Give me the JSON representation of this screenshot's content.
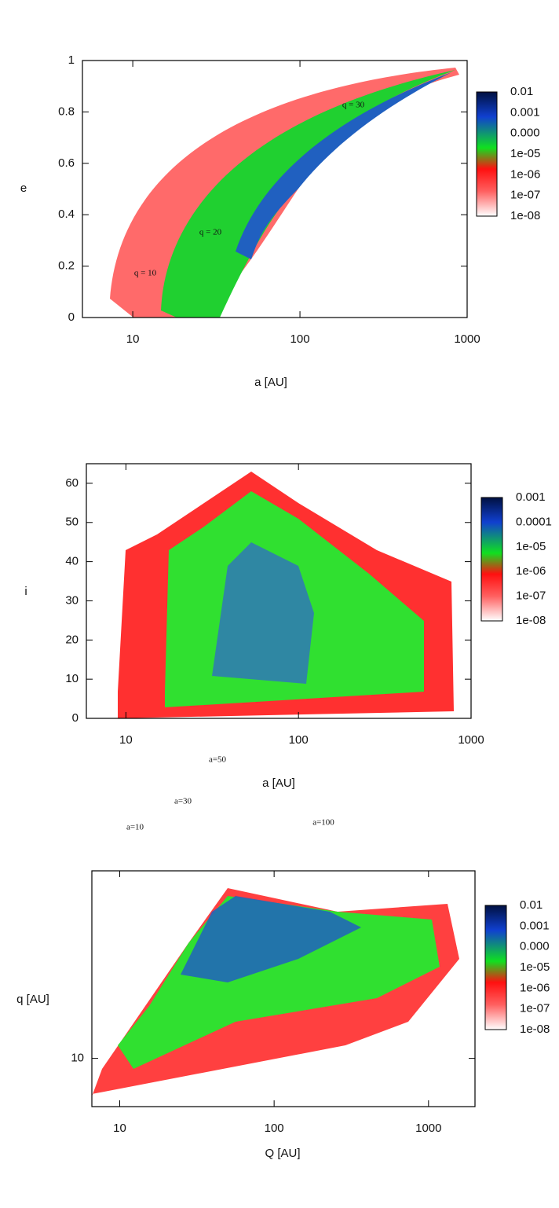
{
  "chart_data": [
    {
      "type": "heatmap",
      "xlabel": "a [AU]",
      "ylabel": "e",
      "log_x": true,
      "log_y": false,
      "xlim": [
        5,
        1000
      ],
      "ylim": [
        0,
        1
      ],
      "xticks": [
        10,
        100,
        1000
      ],
      "yticks": [
        0,
        0.2,
        0.4,
        0.6,
        0.8,
        1
      ],
      "colorbar_labels": [
        "0.01",
        "0.001",
        "0.000",
        "1e-05",
        "1e-06",
        "1e-07",
        "1e-08"
      ],
      "annotations": [
        "q = 10",
        "q = 20",
        "q = 30"
      ]
    },
    {
      "type": "heatmap",
      "xlabel": "a [AU]",
      "ylabel": "i",
      "log_x": true,
      "log_y": false,
      "xlim": [
        5.9,
        1000
      ],
      "ylim": [
        0,
        65
      ],
      "xticks": [
        10,
        100,
        1000
      ],
      "yticks": [
        0,
        10,
        20,
        30,
        40,
        50,
        60
      ],
      "colorbar_labels": [
        "0.001",
        "0.0001",
        "1e-05",
        "1e-06",
        "1e-07",
        "1e-08"
      ],
      "annotations": []
    },
    {
      "type": "heatmap",
      "xlabel": "Q [AU]",
      "ylabel": "q [AU]",
      "log_x": true,
      "log_y": true,
      "xlim": [
        6.6,
        2000
      ],
      "ylim": [
        7,
        40
      ],
      "xticks": [
        10,
        100,
        1000
      ],
      "yticks": [
        10
      ],
      "colorbar_labels": [
        "0.01",
        "0.001",
        "0.000",
        "1e-05",
        "1e-06",
        "1e-07",
        "1e-08"
      ],
      "annotations": [
        "a=10",
        "a=30",
        "a=50",
        "a=100"
      ]
    }
  ]
}
